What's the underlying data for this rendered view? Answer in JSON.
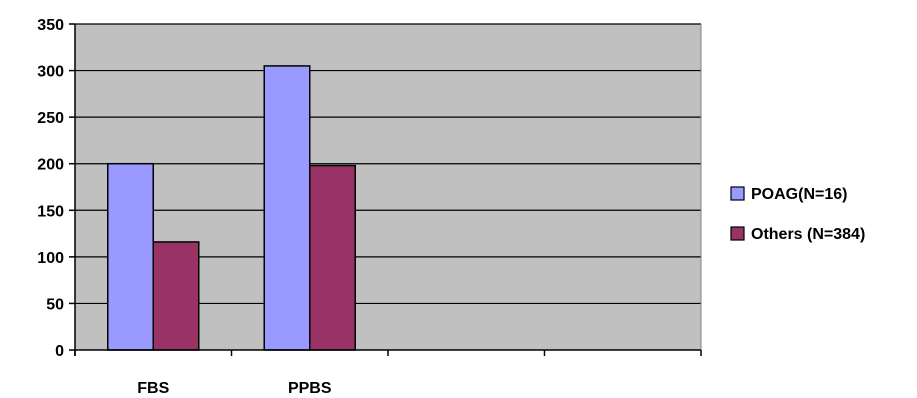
{
  "chart_data": {
    "type": "bar",
    "categories": [
      "FBS",
      "PPBS",
      "",
      ""
    ],
    "series": [
      {
        "name": "POAG(N=16)",
        "values": [
          200,
          305,
          null,
          null
        ],
        "color": "#9999ff"
      },
      {
        "name": "Others (N=384)",
        "values": [
          116,
          198,
          null,
          null
        ],
        "color": "#993366"
      }
    ],
    "title": "",
    "xlabel": "",
    "ylabel": "",
    "ylim": [
      0,
      350
    ],
    "yticks": [
      0,
      50,
      100,
      150,
      200,
      250,
      300,
      350
    ],
    "grid": true,
    "legend_position": "right",
    "plot_background": "#c0c0c0"
  }
}
